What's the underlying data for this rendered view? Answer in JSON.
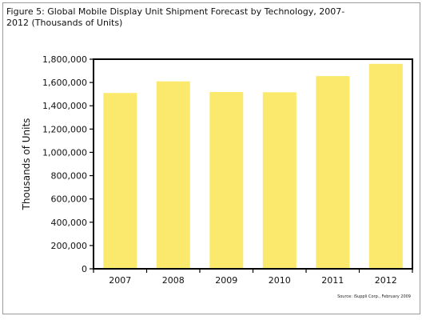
{
  "chart_data": {
    "type": "bar",
    "title": "Figure 5: Global Mobile Display Unit Shipment Forecast by Technology, 2007-2012 (Thousands of Units)",
    "xlabel": "",
    "ylabel": "Thousands of Units",
    "categories": [
      "2007",
      "2008",
      "2009",
      "2010",
      "2011",
      "2012"
    ],
    "values": [
      1510000,
      1610000,
      1518000,
      1516000,
      1655000,
      1760000
    ],
    "ylim": [
      0,
      1800000
    ],
    "yticks": [
      0,
      200000,
      400000,
      600000,
      800000,
      1000000,
      1200000,
      1400000,
      1600000,
      1800000
    ],
    "ytick_labels": [
      "0",
      "200,000",
      "400,000",
      "600,000",
      "800,000",
      "1,000,000",
      "1,200,000",
      "1,400,000",
      "1,600,000",
      "1,800,000"
    ],
    "grid": false,
    "legend": "none",
    "bar_color": "#fbe96e",
    "source": "Source: iSuppli Corp., February 2009"
  }
}
